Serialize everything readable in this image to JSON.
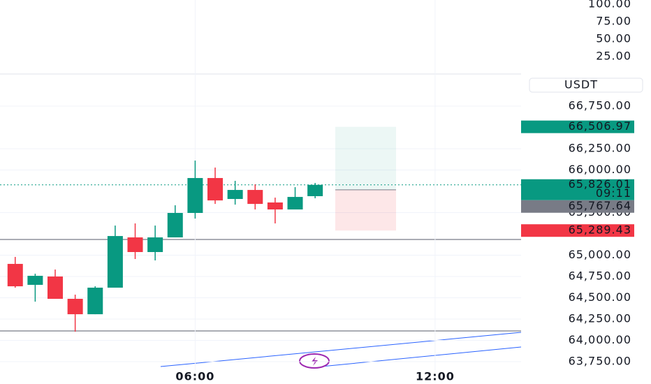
{
  "chart_data": [
    {
      "type": "candlestick",
      "currency": "USDT",
      "x": [
        1.5,
        2,
        2.5,
        3,
        3.5,
        4,
        4.5,
        5,
        5.5,
        6,
        6.5,
        7,
        7.5,
        8,
        8.5,
        9
      ],
      "open": [
        64898,
        64652,
        64750,
        64488,
        64307,
        64619,
        65209,
        65037,
        65209,
        65496,
        65906,
        65660,
        65766,
        65619,
        65537,
        65693
      ],
      "high": [
        64980,
        64783,
        64832,
        64537,
        64635,
        65348,
        65373,
        65348,
        65586,
        66111,
        66029,
        65873,
        65832,
        65676,
        65799,
        65848
      ],
      "low": [
        64619,
        64455,
        64488,
        64102,
        64307,
        64619,
        64955,
        64939,
        65209,
        65430,
        65602,
        65594,
        65537,
        65373,
        65537,
        65668
      ],
      "close": [
        64635,
        64758,
        64488,
        64307,
        64619,
        65225,
        65037,
        65209,
        65496,
        65906,
        65643,
        65766,
        65602,
        65537,
        65684,
        65826
      ],
      "up_color": "#089981",
      "down_color": "#f23645",
      "xlim": [
        1.12,
        14.15
      ],
      "xticks": [
        {
          "value": 6,
          "label": "06:00"
        },
        {
          "value": 12,
          "label": "12:00"
        }
      ],
      "ylim": [
        63570,
        67127
      ],
      "yticks": [
        {
          "value": 66750,
          "label": "66,750.00"
        },
        {
          "value": 66250,
          "label": "66,250.00"
        },
        {
          "value": 66000,
          "label": "66,000.00"
        },
        {
          "value": 65500,
          "label": "65,500.00"
        },
        {
          "value": 65000,
          "label": "65,000.00"
        },
        {
          "value": 64750,
          "label": "64,750.00"
        },
        {
          "value": 64500,
          "label": "64,500.00"
        },
        {
          "value": 64250,
          "label": "64,250.00"
        },
        {
          "value": 64000,
          "label": "64,000.00"
        },
        {
          "value": 63750,
          "label": "63,750.00"
        }
      ],
      "last_price": {
        "value": 65826.01,
        "label": "65,826.01",
        "countdown": "09:11",
        "color": "#089981"
      },
      "position": [
        {
          "value": 66506.97,
          "label": "66,506.97",
          "color": "#089981"
        },
        {
          "value": 65767.64,
          "label": "65,767.64",
          "color": "#787b86"
        },
        {
          "value": 65289.43,
          "label": "65,289.43",
          "color": "#f23645"
        }
      ]
    },
    {
      "type": "line",
      "ylim": [
        0,
        100
      ],
      "yticks": [
        {
          "value": 100,
          "label": "100.00"
        },
        {
          "value": 75,
          "label": "75.00"
        },
        {
          "value": 50,
          "label": "50.00"
        },
        {
          "value": 25,
          "label": "25.00"
        }
      ]
    }
  ]
}
